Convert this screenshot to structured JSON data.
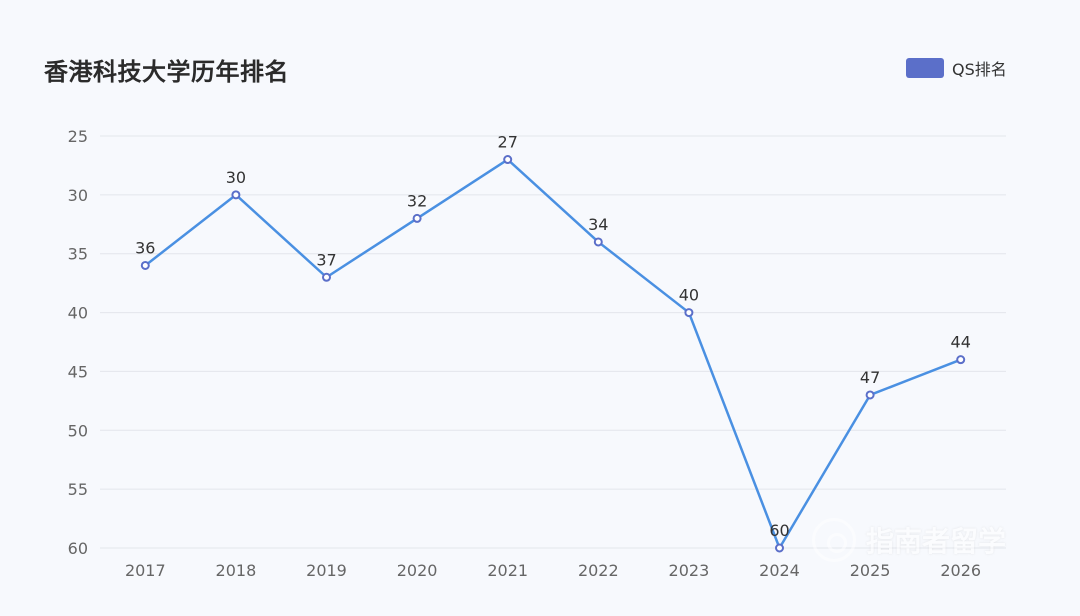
{
  "chart_data": {
    "type": "line",
    "title": "香港科技大学历年排名",
    "categories": [
      "2017",
      "2018",
      "2019",
      "2020",
      "2021",
      "2022",
      "2023",
      "2024",
      "2025",
      "2026"
    ],
    "series": [
      {
        "name": "QS排名",
        "values": [
          36,
          30,
          37,
          32,
          27,
          34,
          40,
          60,
          47,
          44
        ],
        "color": "#4a90e2",
        "marker_color": "#5b6fc9"
      }
    ],
    "ylim": [
      25,
      60
    ],
    "y_inverted": true,
    "y_ticks": [
      25,
      30,
      35,
      40,
      45,
      50,
      55,
      60
    ],
    "grid": true,
    "legend_position": "top-right",
    "legend_color": "#5b6fc9"
  },
  "watermark": {
    "text": "指南者留学",
    "logo_icon": "compass-ring-icon"
  }
}
